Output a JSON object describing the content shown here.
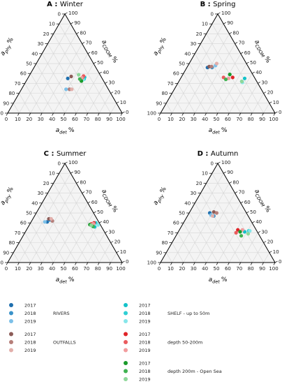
{
  "chart_data": [
    {
      "type": "scatter",
      "subtype": "ternary",
      "panel_letter": "A",
      "title": "Winter",
      "axes": {
        "left": {
          "label": "a",
          "sub": "phy",
          "unit": "%"
        },
        "right": {
          "label": "a",
          "sub": "CDOM",
          "unit": "%"
        },
        "bottom": {
          "label": "a",
          "sub": "det",
          "unit": "%"
        }
      },
      "ticks": [
        "0",
        "10",
        "20",
        "30",
        "40",
        "50",
        "60",
        "70",
        "80",
        "90",
        "100"
      ],
      "points": [
        {
          "group": "rivers",
          "year": "2017",
          "phy": 35,
          "det": 35,
          "cdom": 30
        },
        {
          "group": "rivers",
          "year": "2018",
          "phy": 24,
          "det": 42,
          "cdom": 34
        },
        {
          "group": "rivers",
          "year": "2019",
          "phy": 24,
          "det": 39,
          "cdom": 37
        },
        {
          "group": "outfalls",
          "year": "2017",
          "phy": 37,
          "det": 37,
          "cdom": 26
        },
        {
          "group": "outfalls",
          "year": "2018",
          "phy": 24,
          "det": 42,
          "cdom": 34
        },
        {
          "group": "outfalls",
          "year": "2019",
          "phy": 24,
          "det": 44,
          "cdom": 32
        },
        {
          "group": "shelf",
          "year": "2017",
          "phy": 44,
          "det": 60,
          "cdom": 18
        },
        {
          "group": "shelf",
          "year": "2018",
          "phy": 45,
          "det": 65,
          "cdom": 21
        },
        {
          "group": "shelf",
          "year": "2019",
          "phy": 45,
          "det": 65,
          "cdom": 23
        },
        {
          "group": "mid",
          "year": "2017",
          "phy": 46,
          "det": 61,
          "cdom": 22
        },
        {
          "group": "mid",
          "year": "2018",
          "phy": 45,
          "det": 57,
          "cdom": 18
        },
        {
          "group": "mid",
          "year": "2019",
          "phy": 47,
          "det": 62,
          "cdom": 23
        },
        {
          "group": "open",
          "year": "2017",
          "phy": 45,
          "det": 67,
          "cdom": 27
        },
        {
          "group": "open",
          "year": "2018",
          "phy": 45,
          "det": 60,
          "cdom": 26
        },
        {
          "group": "open",
          "year": "2019",
          "phy": 50,
          "det": 55,
          "cdom": 24
        }
      ]
    },
    {
      "type": "scatter",
      "subtype": "ternary",
      "panel_letter": "B",
      "title": "Spring",
      "axes": {
        "left": {
          "label": "a",
          "sub": "phy",
          "unit": "%"
        },
        "right": {
          "label": "a",
          "sub": "CDOM",
          "unit": "%"
        },
        "bottom": {
          "label": "a",
          "sub": "det",
          "unit": "%"
        }
      },
      "ticks": [
        "0",
        "10",
        "20",
        "30",
        "40",
        "50",
        "60",
        "70",
        "80",
        "90",
        "100"
      ],
      "points": [
        {
          "group": "rivers",
          "year": "2017",
          "phy": 46,
          "det": 18,
          "cdom": 36
        },
        {
          "group": "rivers",
          "year": "2018",
          "phy": 46,
          "det": 22,
          "cdom": 32
        },
        {
          "group": "rivers",
          "year": "2019",
          "phy": 48,
          "det": 24,
          "cdom": 28
        },
        {
          "group": "outfalls",
          "year": "2017",
          "phy": 47,
          "det": 19,
          "cdom": 34
        },
        {
          "group": "outfalls",
          "year": "2018",
          "phy": 47,
          "det": 21,
          "cdom": 32
        },
        {
          "group": "outfalls",
          "year": "2019",
          "phy": 50,
          "det": 24,
          "cdom": 26
        },
        {
          "group": "shelf",
          "year": "2017",
          "phy": 35,
          "det": 56,
          "cdom": 9
        },
        {
          "group": "shelf",
          "year": "2018",
          "phy": 32,
          "det": 55,
          "cdom": 13
        },
        {
          "group": "shelf",
          "year": "2019",
          "phy": 31,
          "det": 56,
          "cdom": 13
        },
        {
          "group": "mid",
          "year": "2017",
          "phy": 36,
          "det": 45,
          "cdom": 19
        },
        {
          "group": "mid",
          "year": "2018",
          "phy": 36,
          "det": 37,
          "cdom": 27
        },
        {
          "group": "mid",
          "year": "2019",
          "phy": 35,
          "det": 42,
          "cdom": 23
        },
        {
          "group": "open",
          "year": "2017",
          "phy": 39,
          "det": 41,
          "cdom": 20
        },
        {
          "group": "open",
          "year": "2018",
          "phy": 34,
          "det": 40,
          "cdom": 26
        },
        {
          "group": "open",
          "year": "2019",
          "phy": 32,
          "det": 55,
          "cdom": 13
        }
      ]
    },
    {
      "type": "scatter",
      "subtype": "ternary",
      "panel_letter": "C",
      "title": "Summer",
      "axes": {
        "left": {
          "label": "a",
          "sub": "phy",
          "unit": "%"
        },
        "right": {
          "label": "a",
          "sub": "CDOM",
          "unit": "%"
        },
        "bottom": {
          "label": "a",
          "sub": "det",
          "unit": "%"
        }
      },
      "ticks": [
        "0",
        "10",
        "20",
        "30",
        "40",
        "50",
        "60",
        "70",
        "80",
        "90",
        "100"
      ],
      "points": [
        {
          "group": "rivers",
          "year": "2017",
          "phy": 41,
          "det": 14,
          "cdom": 45
        },
        {
          "group": "rivers",
          "year": "2018",
          "phy": 43,
          "det": 15,
          "cdom": 42
        },
        {
          "group": "rivers",
          "year": "2019",
          "phy": 41,
          "det": 12,
          "cdom": 47
        },
        {
          "group": "outfalls",
          "year": "2017",
          "phy": 44,
          "det": 14,
          "cdom": 42
        },
        {
          "group": "outfalls",
          "year": "2018",
          "phy": 42,
          "det": 18,
          "cdom": 40
        },
        {
          "group": "outfalls",
          "year": "2019",
          "phy": 44,
          "det": 16,
          "cdom": 40
        },
        {
          "group": "shelf",
          "year": "2017",
          "phy": 36,
          "det": 58,
          "cdom": 6
        },
        {
          "group": "shelf",
          "year": "2018",
          "phy": 40,
          "det": 57,
          "cdom": 3
        },
        {
          "group": "shelf",
          "year": "2019",
          "phy": 38,
          "det": 60,
          "cdom": 2
        },
        {
          "group": "mid",
          "year": "2017",
          "phy": 44,
          "det": 61,
          "cdom": 5
        },
        {
          "group": "mid",
          "year": "2018",
          "phy": 43,
          "det": 59,
          "cdom": 8
        },
        {
          "group": "mid",
          "year": "2019",
          "phy": 43,
          "det": 61,
          "cdom": 6
        },
        {
          "group": "open",
          "year": "2017",
          "phy": 42,
          "det": 58,
          "cdom": 10
        },
        {
          "group": "open",
          "year": "2018",
          "phy": 40,
          "det": 62,
          "cdom": 8
        },
        {
          "group": "open",
          "year": "2019",
          "phy": 41,
          "det": 59,
          "cdom": 9
        }
      ]
    },
    {
      "type": "scatter",
      "subtype": "ternary",
      "panel_letter": "D",
      "title": "Autumn",
      "axes": {
        "left": {
          "label": "a",
          "sub": "phy",
          "unit": "%"
        },
        "right": {
          "label": "a",
          "sub": "CDOM",
          "unit": "%"
        },
        "bottom": {
          "label": "a",
          "sub": "det",
          "unit": "%"
        }
      },
      "ticks": [
        "0",
        "10",
        "20",
        "30",
        "40",
        "50",
        "60",
        "70",
        "80",
        "90",
        "100"
      ],
      "points": [
        {
          "group": "rivers",
          "year": "2017",
          "phy": 50,
          "det": 18,
          "cdom": 32
        },
        {
          "group": "rivers",
          "year": "2018",
          "phy": 47,
          "det": 23,
          "cdom": 30
        },
        {
          "group": "rivers",
          "year": "2019",
          "phy": 48,
          "det": 20,
          "cdom": 32
        },
        {
          "group": "outfalls",
          "year": "2017",
          "phy": 51,
          "det": 21,
          "cdom": 28
        },
        {
          "group": "outfalls",
          "year": "2018",
          "phy": 50,
          "det": 24,
          "cdom": 26
        },
        {
          "group": "outfalls",
          "year": "2019",
          "phy": 47,
          "det": 22,
          "cdom": 31
        },
        {
          "group": "shelf",
          "year": "2017",
          "phy": 31,
          "det": 58,
          "cdom": 11
        },
        {
          "group": "shelf",
          "year": "2018",
          "phy": 32,
          "det": 61,
          "cdom": 7
        },
        {
          "group": "shelf",
          "year": "2019",
          "phy": 32,
          "det": 62,
          "cdom": 6
        },
        {
          "group": "mid",
          "year": "2017",
          "phy": 33,
          "det": 51,
          "cdom": 16
        },
        {
          "group": "mid",
          "year": "2018",
          "phy": 30,
          "det": 51,
          "cdom": 19
        },
        {
          "group": "mid",
          "year": "2019",
          "phy": 33,
          "det": 55,
          "cdom": 12
        },
        {
          "group": "open",
          "year": "2017",
          "phy": 31,
          "det": 54,
          "cdom": 15
        },
        {
          "group": "open",
          "year": "2018",
          "phy": 27,
          "det": 57,
          "cdom": 16
        },
        {
          "group": "open",
          "year": "2019",
          "phy": 29,
          "det": 62,
          "cdom": 9
        }
      ]
    }
  ],
  "legend": {
    "groups": [
      {
        "key": "rivers",
        "label": "RIVERS",
        "years": [
          "2017",
          "2018",
          "2019"
        ],
        "colors": [
          "#1f6fae",
          "#3a92c9",
          "#7cc0e8"
        ]
      },
      {
        "key": "outfalls",
        "label": "OUTFALLS",
        "years": [
          "2017",
          "2018",
          "2019"
        ],
        "colors": [
          "#8c5c58",
          "#b57e79",
          "#e2afab"
        ]
      },
      {
        "key": "shelf",
        "label": "SHELF - up to 50m",
        "years": [
          "2017",
          "2018",
          "2019"
        ],
        "colors": [
          "#13c2c9",
          "#2fcfd4",
          "#86e6ea"
        ]
      },
      {
        "key": "mid",
        "label": "depth 50-200m",
        "years": [
          "2017",
          "2018",
          "2019"
        ],
        "colors": [
          "#e02428",
          "#ea5b5e",
          "#f29c9e"
        ]
      },
      {
        "key": "open",
        "label": "depth 200m - Open Sea",
        "years": [
          "2017",
          "2018",
          "2019"
        ],
        "colors": [
          "#1a9a2a",
          "#3fb251",
          "#8fd79a"
        ]
      }
    ]
  }
}
